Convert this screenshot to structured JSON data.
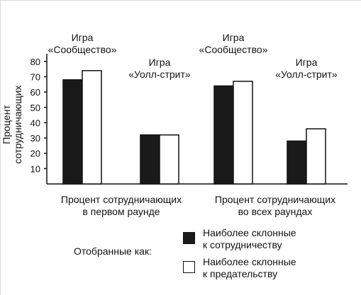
{
  "chart_data": {
    "type": "bar",
    "ylabel": "Процент сотрудничающих",
    "ylim": [
      0,
      85
    ],
    "yticks": [
      10,
      20,
      30,
      40,
      50,
      60,
      70,
      80
    ],
    "groups": [
      {
        "label": [
          "Процент сотрудничающих",
          "в первом раунде"
        ]
      },
      {
        "label": [
          "Процент сотрудничающих",
          "во всех раундах"
        ]
      }
    ],
    "games": [
      {
        "label": [
          "Игра",
          "«Сообщество»"
        ]
      },
      {
        "label": [
          "Игра",
          "«Уолл-стрит»"
        ]
      },
      {
        "label": [
          "Игра",
          "«Сообщество»"
        ]
      },
      {
        "label": [
          "Игра",
          "«Уолл-стрит»"
        ]
      }
    ],
    "series": [
      {
        "name": "Наиболее склонные к сотрудничеству",
        "color": "#1a1a1a",
        "values": [
          68,
          32,
          64,
          28
        ]
      },
      {
        "name": "Наиболее склонные к предательству",
        "color": "#ffffff",
        "values": [
          74,
          32,
          67,
          36
        ]
      }
    ],
    "legend": {
      "title": "Отобранные как:",
      "items": [
        {
          "lines": [
            "Наиболее склонные",
            "к сотрудничеству"
          ],
          "color": "#1a1a1a"
        },
        {
          "lines": [
            "Наиболее склонные",
            "к предательству"
          ],
          "color": "#ffffff"
        }
      ]
    }
  }
}
